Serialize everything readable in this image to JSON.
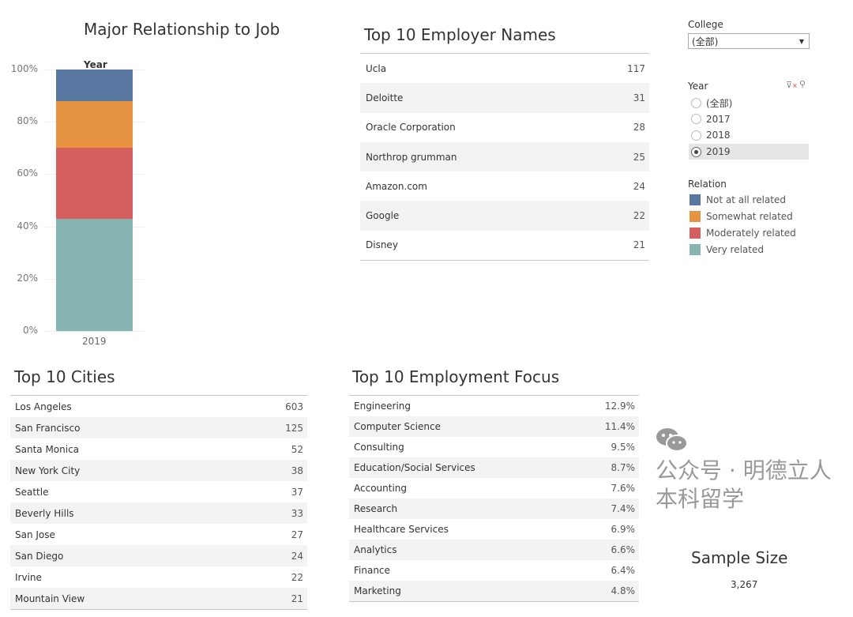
{
  "chart_data": {
    "type": "bar",
    "stacked": true,
    "title": "Major Relationship to Job",
    "column_header": "Year",
    "categories": [
      "2019"
    ],
    "ylim": [
      0,
      100
    ],
    "yticks": [
      "0%",
      "20%",
      "40%",
      "60%",
      "80%",
      "100%"
    ],
    "grid": true,
    "series": [
      {
        "name": "Very related",
        "color": "#86b4b0",
        "values": [
          43.0
        ]
      },
      {
        "name": "Moderately related",
        "color": "#d45f5e",
        "values": [
          27.2
        ]
      },
      {
        "name": "Somewhat related",
        "color": "#e69442",
        "values": [
          17.7
        ]
      },
      {
        "name": "Not at all related",
        "color": "#5878a2",
        "values": [
          12.1
        ]
      }
    ]
  },
  "employers": {
    "title": "Top 10 Employer Names",
    "rows": [
      {
        "name": "Ucla",
        "value": "117"
      },
      {
        "name": "Deloitte",
        "value": "31"
      },
      {
        "name": "Oracle Corporation",
        "value": "28"
      },
      {
        "name": "Northrop grumman",
        "value": "25"
      },
      {
        "name": "Amazon.com",
        "value": "24"
      },
      {
        "name": "Google",
        "value": "22"
      },
      {
        "name": "Disney",
        "value": "21"
      }
    ]
  },
  "filters": {
    "college": {
      "label": "College",
      "value": "(全部)"
    },
    "year": {
      "label": "Year",
      "options": [
        "(全部)",
        "2017",
        "2018",
        "2019"
      ],
      "selected": "2019"
    },
    "relation": {
      "label": "Relation",
      "items": [
        {
          "label": "Not at all related",
          "color": "#5878a2"
        },
        {
          "label": "Somewhat related",
          "color": "#e69442"
        },
        {
          "label": "Moderately related",
          "color": "#d45f5e"
        },
        {
          "label": "Very related",
          "color": "#86b4b0"
        }
      ]
    }
  },
  "cities": {
    "title": "Top 10 Cities",
    "rows": [
      {
        "name": "Los Angeles",
        "value": "603"
      },
      {
        "name": "San Francisco",
        "value": "125"
      },
      {
        "name": "Santa Monica",
        "value": "52"
      },
      {
        "name": "New York City",
        "value": "38"
      },
      {
        "name": "Seattle",
        "value": "37"
      },
      {
        "name": "Beverly Hills",
        "value": "33"
      },
      {
        "name": "San Jose",
        "value": "27"
      },
      {
        "name": "San Diego",
        "value": "24"
      },
      {
        "name": "Irvine",
        "value": "22"
      },
      {
        "name": "Mountain View",
        "value": "21"
      }
    ]
  },
  "focus": {
    "title": "Top 10 Employment Focus",
    "rows": [
      {
        "name": "Engineering",
        "value": "12.9%"
      },
      {
        "name": "Computer Science",
        "value": "11.4%"
      },
      {
        "name": "Consulting",
        "value": "9.5%"
      },
      {
        "name": "Education/Social Services",
        "value": "8.7%"
      },
      {
        "name": "Accounting",
        "value": "7.6%"
      },
      {
        "name": "Research",
        "value": "7.4%"
      },
      {
        "name": "Healthcare Services",
        "value": "6.9%"
      },
      {
        "name": "Analytics",
        "value": "6.6%"
      },
      {
        "name": "Finance",
        "value": "6.4%"
      },
      {
        "name": "Marketing",
        "value": "4.8%"
      }
    ]
  },
  "sample": {
    "label": "Sample Size",
    "value": "3,267"
  },
  "watermark": {
    "text": "公众号 · 明德立人本科留学"
  }
}
